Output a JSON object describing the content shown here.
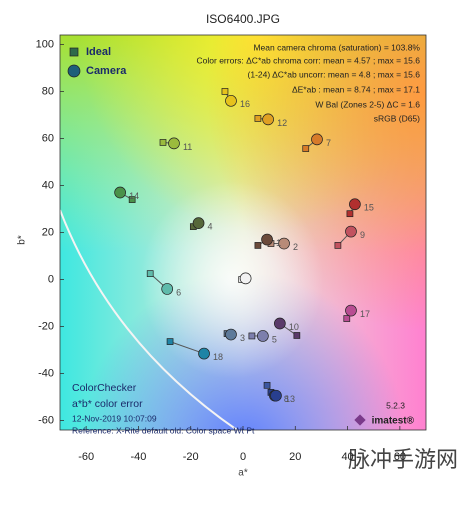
{
  "chart_data": {
    "type": "scatter",
    "title": "ISO6400.JPG",
    "x_label": "a*",
    "y_label": "b*",
    "xlim": [
      -70,
      70
    ],
    "ylim": [
      -64,
      104
    ],
    "xticks": [
      -60,
      -40,
      -20,
      0,
      20,
      40,
      60
    ],
    "yticks": [
      -60,
      -40,
      -20,
      0,
      20,
      40,
      60,
      80,
      100
    ],
    "legend": "upper left",
    "annotations": [
      "Mean camera chroma (saturation) = 103.8%",
      "Color errors:  ΔC*ab chroma corr:  mean = 4.57 ;  max = 15.6",
      "(1-24)          ΔC*ab uncorr:  mean = 4.8  ;  max = 15.6",
      "ΔE*ab :  mean = 8.74 ;  max = 17.1",
      "W Bal (Zones 2-5) ΔC = 1.6",
      "sRGB (D65)"
    ],
    "footer": [
      "ColorChecker",
      "a*b* color error",
      "12-Nov-2019 10:07:09",
      "Reference: X-Rite default old: Color space Wt Pt"
    ],
    "version": "5.2.3",
    "brand": "imatest®",
    "watermark": "脉冲手游网",
    "labels": [
      "1",
      "2",
      "3",
      "4",
      "5",
      "6",
      "7",
      "8",
      "9",
      "10",
      "11",
      "12",
      "13",
      "14",
      "15",
      "16",
      "17",
      "18",
      null
    ],
    "point_colors": [
      "#6b4a3a",
      "#b88b78",
      "#5d7a9a",
      "#56683a",
      "#7d7fad",
      "#5fbbab",
      "#d77b2a",
      "#3c57a0",
      "#c2525f",
      "#5a3a6a",
      "#9bbb3d",
      "#e0a023",
      "#283f8f",
      "#4a924a",
      "#b2302f",
      "#e6c21c",
      "#b84d92",
      "#1e84a6",
      "#f2f2f2"
    ],
    "series": [
      {
        "name": "Ideal",
        "marker": "square",
        "color": "#2f6b4a",
        "x": [
          5.7,
          10.7,
          -6.1,
          -19,
          3.4,
          -35.5,
          24,
          9.2,
          36.3,
          20.6,
          -30.6,
          5.7,
          10.7,
          -42.4,
          40.9,
          -6.9,
          39.7,
          -27.9,
          -0.5
        ],
        "y": [
          14.5,
          15.3,
          -23,
          22.5,
          -24,
          2.5,
          55.7,
          -45,
          14.5,
          -23.8,
          58.3,
          68.5,
          -48,
          34,
          28,
          80,
          -16.6,
          -26.4,
          0
        ]
      },
      {
        "name": "Camera",
        "marker": "circle",
        "color": "#1e5f7a",
        "x": [
          9.2,
          15.7,
          -4.6,
          -17,
          7.6,
          -29,
          28.3,
          12.2,
          41.3,
          14.1,
          -26.4,
          9.6,
          12.6,
          -47,
          42.8,
          -4.6,
          41.3,
          -14.9,
          1
        ],
        "y": [
          17,
          15.3,
          -23.4,
          24,
          -24,
          -4,
          59.6,
          -49.4,
          20.4,
          -18.7,
          57.9,
          68.1,
          -49.4,
          37,
          32,
          76,
          -13.2,
          -31.5,
          0.5
        ]
      }
    ]
  }
}
